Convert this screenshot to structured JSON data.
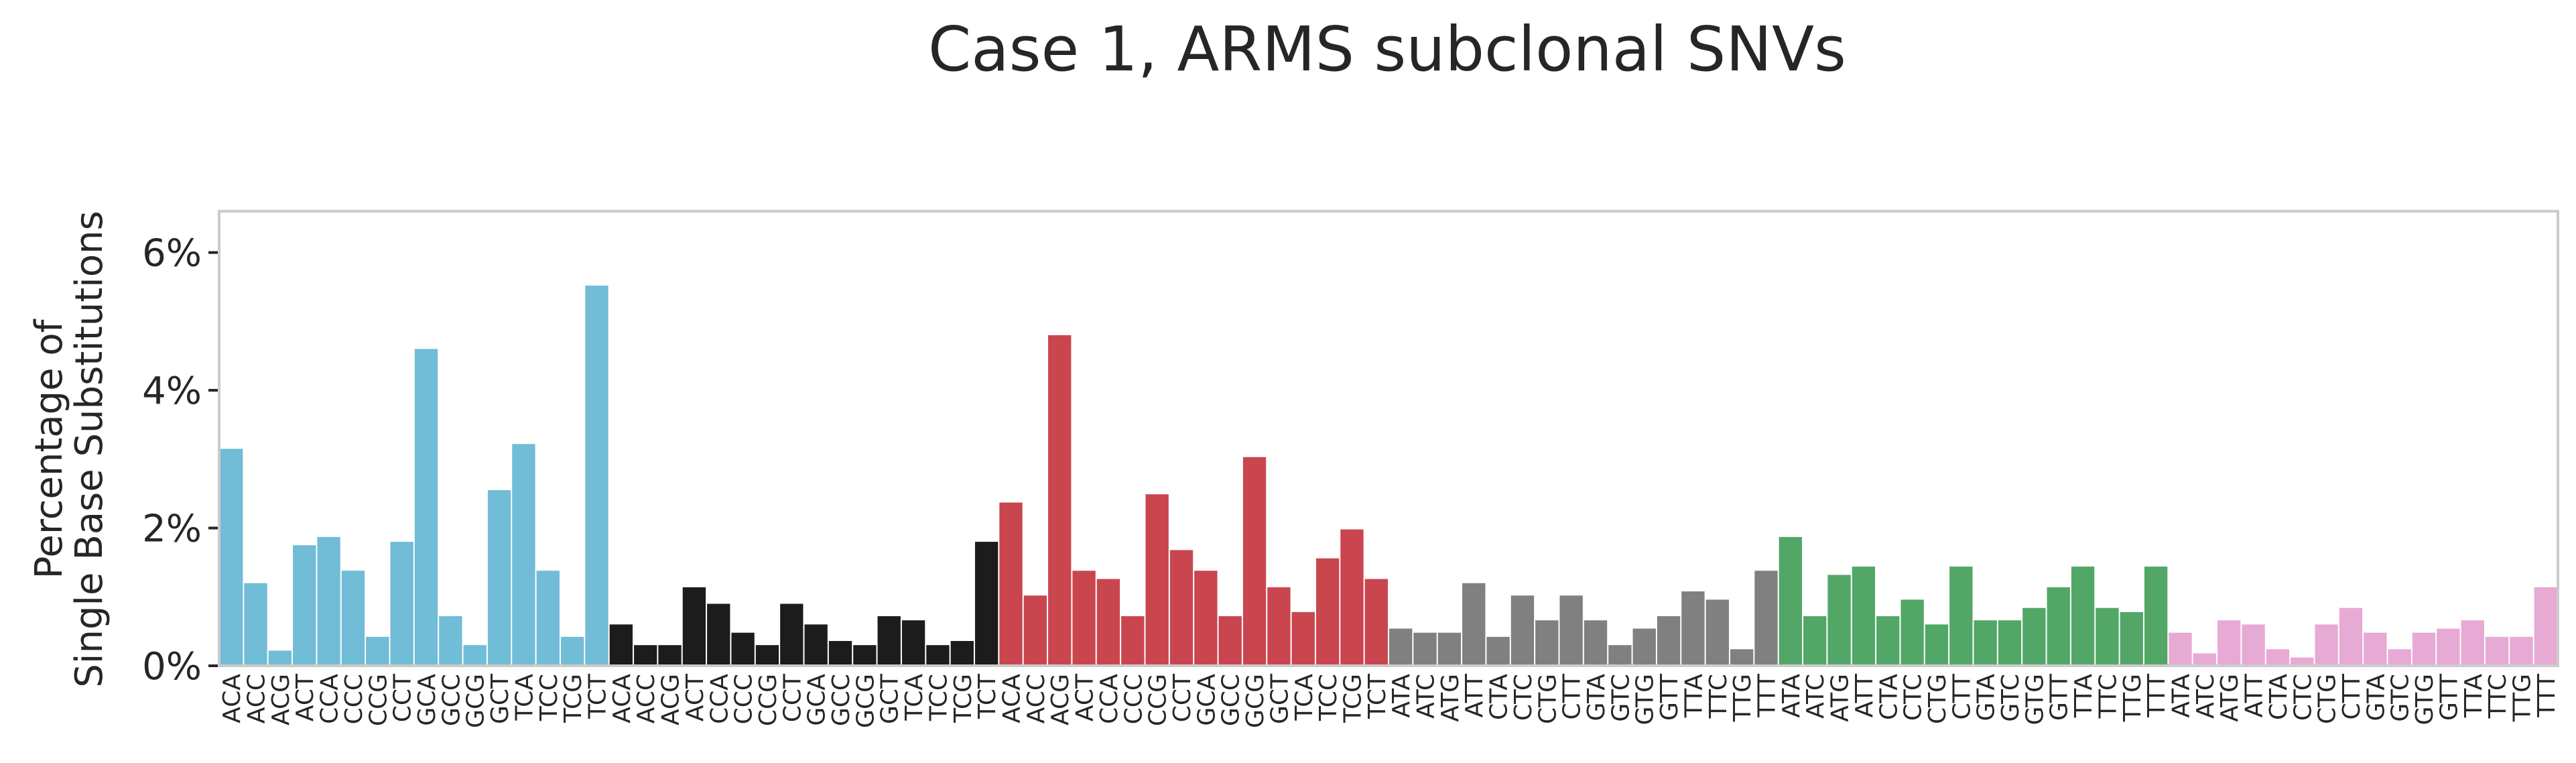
{
  "chart_data": {
    "type": "bar",
    "title": "Case 1, ARMS subclonal SNVs",
    "ylabel_lines": [
      "Percentage of",
      "Single Base Substitutions"
    ],
    "ylim": [
      0,
      6.6
    ],
    "yticks": [
      0,
      2,
      4,
      6
    ],
    "ytick_labels": [
      "0%",
      "2%",
      "4%",
      "6%"
    ],
    "grid": false,
    "categories": [
      "ACA",
      "ACC",
      "ACG",
      "ACT",
      "CCA",
      "CCC",
      "CCG",
      "CCT",
      "GCA",
      "GCC",
      "GCG",
      "GCT",
      "TCA",
      "TCC",
      "TCG",
      "TCT",
      "ACA",
      "ACC",
      "ACG",
      "ACT",
      "CCA",
      "CCC",
      "CCG",
      "CCT",
      "GCA",
      "GCC",
      "GCG",
      "GCT",
      "TCA",
      "TCC",
      "TCG",
      "TCT",
      "ACA",
      "ACC",
      "ACG",
      "ACT",
      "CCA",
      "CCC",
      "CCG",
      "CCT",
      "GCA",
      "GCC",
      "GCG",
      "GCT",
      "TCA",
      "TCC",
      "TCG",
      "TCT",
      "ATA",
      "ATC",
      "ATG",
      "ATT",
      "CTA",
      "CTC",
      "CTG",
      "CTT",
      "GTA",
      "GTC",
      "GTG",
      "GTT",
      "TTA",
      "TTC",
      "TTG",
      "TTT",
      "ATA",
      "ATC",
      "ATG",
      "ATT",
      "CTA",
      "CTC",
      "CTG",
      "CTT",
      "GTA",
      "GTC",
      "GTG",
      "GTT",
      "TTA",
      "TTC",
      "TTG",
      "TTT",
      "ATA",
      "ATC",
      "ATG",
      "ATT",
      "CTA",
      "CTC",
      "CTG",
      "CTT",
      "GTA",
      "GTC",
      "GTG",
      "GTT",
      "TTA",
      "TTC",
      "TTG",
      "TTT"
    ],
    "series_colors": [
      "#71bcd6",
      "#1c1c1c",
      "#c9464e",
      "#808080",
      "#52a766",
      "#e7aad4"
    ],
    "values": [
      3.15,
      1.2,
      0.22,
      1.75,
      1.87,
      1.38,
      0.42,
      1.8,
      4.6,
      0.72,
      0.3,
      2.55,
      3.22,
      1.38,
      0.42,
      5.52,
      0.6,
      0.3,
      0.3,
      1.14,
      0.9,
      0.48,
      0.3,
      0.9,
      0.6,
      0.36,
      0.3,
      0.72,
      0.66,
      0.3,
      0.36,
      1.8,
      2.37,
      1.02,
      4.8,
      1.38,
      1.26,
      0.72,
      2.49,
      1.68,
      1.38,
      0.72,
      3.03,
      1.14,
      0.78,
      1.56,
      1.98,
      1.26,
      0.54,
      0.48,
      0.48,
      1.2,
      0.42,
      1.02,
      0.66,
      1.02,
      0.66,
      0.3,
      0.54,
      0.72,
      1.08,
      0.96,
      0.24,
      1.38,
      1.87,
      0.72,
      1.32,
      1.44,
      0.72,
      0.96,
      0.6,
      1.44,
      0.66,
      0.66,
      0.84,
      1.14,
      1.44,
      0.84,
      0.78,
      1.44,
      0.48,
      0.18,
      0.66,
      0.6,
      0.24,
      0.12,
      0.6,
      0.84,
      0.48,
      0.24,
      0.48,
      0.54,
      0.66,
      0.42,
      0.42,
      1.14
    ]
  }
}
